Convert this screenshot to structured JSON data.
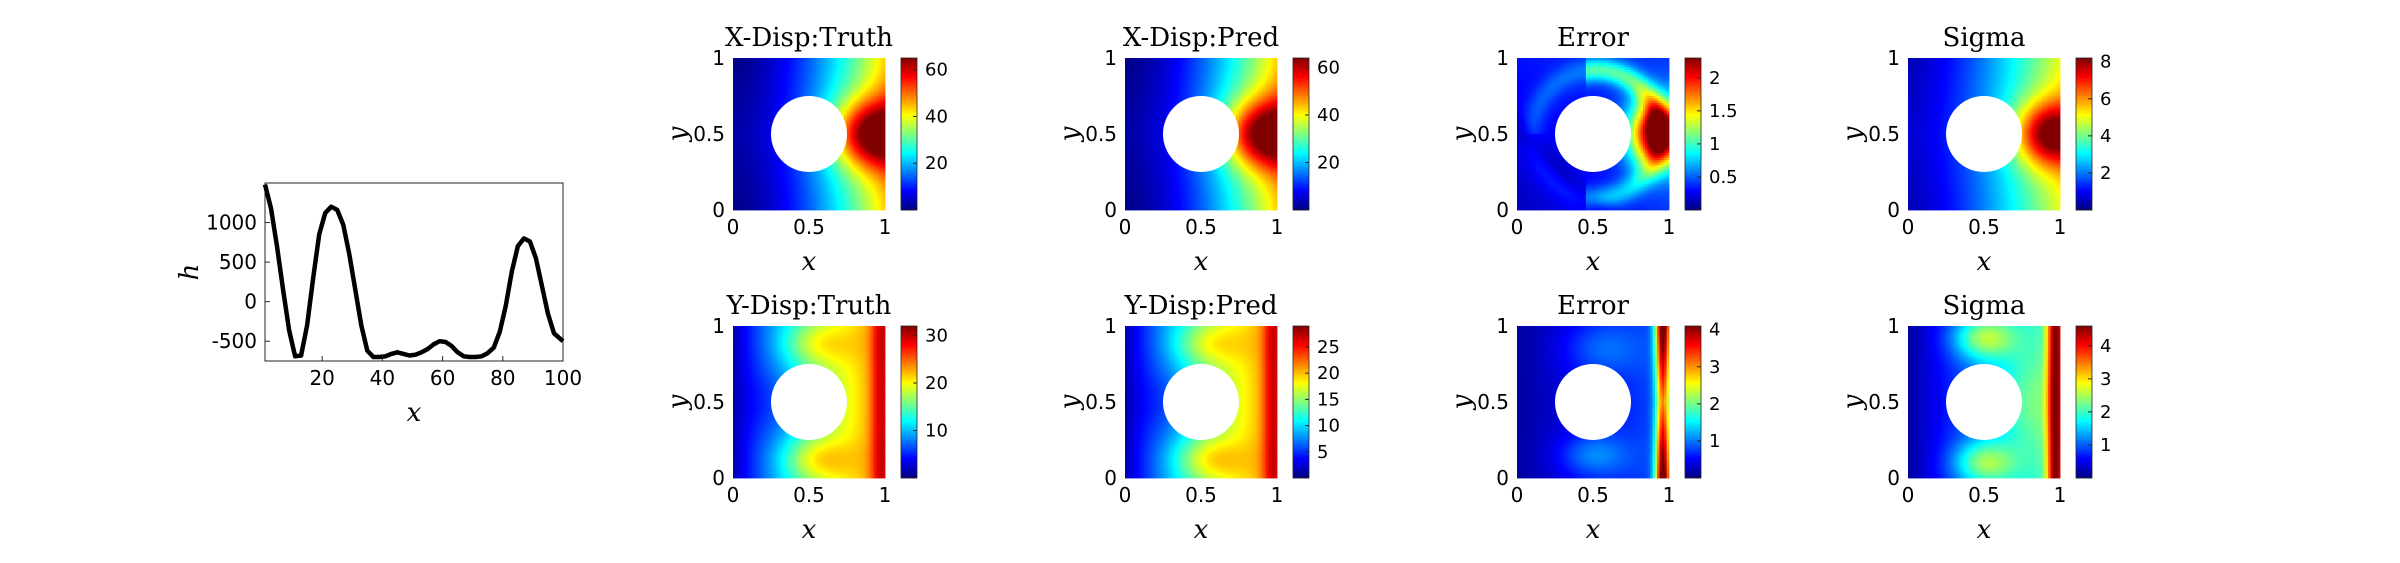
{
  "colors": {
    "line": "#000000",
    "background": "#ffffff",
    "colormap": "jet"
  },
  "chart_data": [
    {
      "type": "line",
      "title": "",
      "xlabel": "x",
      "ylabel": "h",
      "xlim": [
        1,
        100
      ],
      "ylim": [
        -750,
        1500
      ],
      "xticks": [
        "20",
        "40",
        "60",
        "80",
        "100"
      ],
      "yticks": [
        "1000",
        "500",
        "0",
        "-500"
      ],
      "x": [
        1,
        3,
        5,
        7,
        9,
        11,
        13,
        15,
        17,
        19,
        21,
        23,
        25,
        27,
        29,
        31,
        33,
        35,
        37,
        39,
        41,
        43,
        45,
        47,
        49,
        51,
        53,
        55,
        57,
        59,
        61,
        63,
        65,
        67,
        69,
        71,
        73,
        75,
        77,
        79,
        81,
        83,
        85,
        87,
        89,
        91,
        93,
        95,
        97,
        100
      ],
      "y": [
        1480,
        1180,
        700,
        150,
        -360,
        -690,
        -680,
        -300,
        300,
        850,
        1120,
        1200,
        1160,
        970,
        600,
        150,
        -300,
        -620,
        -700,
        -700,
        -690,
        -660,
        -640,
        -660,
        -680,
        -670,
        -640,
        -600,
        -540,
        -500,
        -510,
        -560,
        -640,
        -690,
        -700,
        -700,
        -690,
        -650,
        -580,
        -380,
        -50,
        380,
        700,
        800,
        760,
        550,
        200,
        -150,
        -400,
        -500
      ]
    },
    {
      "type": "heatmap",
      "title": "X-Disp:Truth",
      "xlabel": "x",
      "ylabel": "y",
      "xlim": [
        0,
        1
      ],
      "ylim": [
        0,
        1
      ],
      "xticks": [
        "0",
        "0.5",
        "1"
      ],
      "yticks": [
        "0",
        "0.5",
        "1"
      ],
      "hole": {
        "cx": 0.5,
        "cy": 0.5,
        "r": 0.25
      },
      "clim": [
        0,
        65
      ],
      "colorbar_ticks": [
        20,
        40,
        60
      ],
      "field": "xdisp"
    },
    {
      "type": "heatmap",
      "title": "X-Disp:Pred",
      "xlabel": "x",
      "ylabel": "y",
      "xlim": [
        0,
        1
      ],
      "ylim": [
        0,
        1
      ],
      "xticks": [
        "0",
        "0.5",
        "1"
      ],
      "yticks": [
        "0",
        "0.5",
        "1"
      ],
      "hole": {
        "cx": 0.5,
        "cy": 0.5,
        "r": 0.25
      },
      "clim": [
        0,
        64
      ],
      "colorbar_ticks": [
        20,
        40,
        60
      ],
      "field": "xdisp"
    },
    {
      "type": "heatmap",
      "title": "Error",
      "xlabel": "x",
      "ylabel": "y",
      "xlim": [
        0,
        1
      ],
      "ylim": [
        0,
        1
      ],
      "xticks": [
        "0",
        "0.5",
        "1"
      ],
      "yticks": [
        "0",
        "0.5",
        "1"
      ],
      "hole": {
        "cx": 0.5,
        "cy": 0.5,
        "r": 0.25
      },
      "clim": [
        0,
        2.3
      ],
      "colorbar_ticks": [
        0.5,
        1,
        1.5,
        2
      ],
      "field": "xerr"
    },
    {
      "type": "heatmap",
      "title": "Sigma",
      "xlabel": "x",
      "ylabel": "y",
      "xlim": [
        0,
        1
      ],
      "ylim": [
        0,
        1
      ],
      "xticks": [
        "0",
        "0.5",
        "1"
      ],
      "yticks": [
        "0",
        "0.5",
        "1"
      ],
      "hole": {
        "cx": 0.5,
        "cy": 0.5,
        "r": 0.25
      },
      "clim": [
        0,
        8.2
      ],
      "colorbar_ticks": [
        2,
        4,
        6,
        8
      ],
      "field": "xsig"
    },
    {
      "type": "heatmap",
      "title": "Y-Disp:Truth",
      "xlabel": "x",
      "ylabel": "y",
      "xlim": [
        0,
        1
      ],
      "ylim": [
        0,
        1
      ],
      "xticks": [
        "0",
        "0.5",
        "1"
      ],
      "yticks": [
        "0",
        "0.5",
        "1"
      ],
      "hole": {
        "cx": 0.5,
        "cy": 0.5,
        "r": 0.25
      },
      "clim": [
        0,
        32
      ],
      "colorbar_ticks": [
        10,
        20,
        30
      ],
      "field": "ydisp"
    },
    {
      "type": "heatmap",
      "title": "Y-Disp:Pred",
      "xlabel": "x",
      "ylabel": "y",
      "xlim": [
        0,
        1
      ],
      "ylim": [
        0,
        1
      ],
      "xticks": [
        "0",
        "0.5",
        "1"
      ],
      "yticks": [
        "0",
        "0.5",
        "1"
      ],
      "hole": {
        "cx": 0.5,
        "cy": 0.5,
        "r": 0.25
      },
      "clim": [
        0,
        29
      ],
      "colorbar_ticks": [
        5,
        10,
        15,
        20,
        25
      ],
      "field": "ydisp"
    },
    {
      "type": "heatmap",
      "title": "Error",
      "xlabel": "x",
      "ylabel": "y",
      "xlim": [
        0,
        1
      ],
      "ylim": [
        0,
        1
      ],
      "xticks": [
        "0",
        "0.5",
        "1"
      ],
      "yticks": [
        "0",
        "0.5",
        "1"
      ],
      "hole": {
        "cx": 0.5,
        "cy": 0.5,
        "r": 0.25
      },
      "clim": [
        0,
        4.1
      ],
      "colorbar_ticks": [
        1,
        2,
        3,
        4
      ],
      "field": "yerr"
    },
    {
      "type": "heatmap",
      "title": "Sigma",
      "xlabel": "x",
      "ylabel": "y",
      "xlim": [
        0,
        1
      ],
      "ylim": [
        0,
        1
      ],
      "xticks": [
        "0",
        "0.5",
        "1"
      ],
      "yticks": [
        "0",
        "0.5",
        "1"
      ],
      "hole": {
        "cx": 0.5,
        "cy": 0.5,
        "r": 0.25
      },
      "clim": [
        0,
        4.6
      ],
      "colorbar_ticks": [
        1,
        2,
        3,
        4
      ],
      "field": "ysig"
    }
  ]
}
